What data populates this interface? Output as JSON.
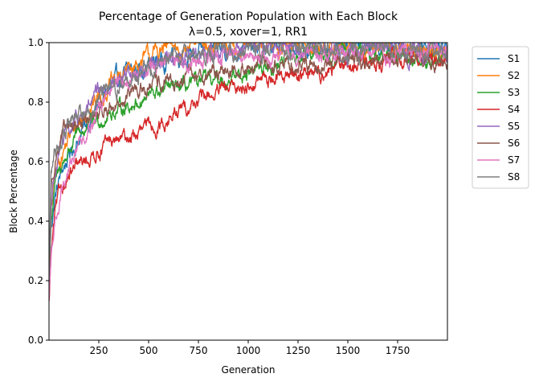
{
  "chart_data": {
    "type": "line",
    "title_line1": "Percentage of Generation Population with Each Block",
    "title_line2": "λ=0.5, xover=1, RR1",
    "xlabel": "Generation",
    "ylabel": "Block Percentage",
    "xlim": [
      0,
      2000
    ],
    "ylim": [
      0,
      1.0
    ],
    "xticks": [
      250,
      500,
      750,
      1000,
      1250,
      1500,
      1750
    ],
    "xtick_labels": [
      "250",
      "500",
      "750",
      "1000",
      "1250",
      "1500",
      "1750"
    ],
    "yticks": [
      0.0,
      0.2,
      0.4,
      0.6,
      0.8,
      1.0
    ],
    "ytick_labels": [
      "0.0",
      "0.2",
      "0.4",
      "0.6",
      "0.8",
      "1.0"
    ],
    "legend_position": "outside-right-top",
    "series": [
      {
        "name": "S1",
        "color": "#1f77b4",
        "noise": 0.035,
        "x": [
          0,
          10,
          30,
          60,
          100,
          150,
          200,
          250,
          300,
          350,
          400,
          500,
          600,
          700,
          800,
          900,
          1000,
          1200,
          1400,
          1600,
          1800,
          2000
        ],
        "values": [
          0.18,
          0.38,
          0.48,
          0.56,
          0.62,
          0.68,
          0.74,
          0.78,
          0.84,
          0.87,
          0.9,
          0.93,
          0.95,
          0.96,
          0.97,
          0.98,
          0.98,
          0.99,
          0.99,
          0.99,
          0.99,
          0.99
        ]
      },
      {
        "name": "S2",
        "color": "#ff7f0e",
        "noise": 0.035,
        "x": [
          0,
          10,
          30,
          60,
          100,
          150,
          200,
          250,
          300,
          350,
          400,
          500,
          550,
          600,
          700,
          800,
          900,
          1000,
          1200,
          1400,
          1600,
          1800,
          2000
        ],
        "values": [
          0.18,
          0.42,
          0.55,
          0.62,
          0.68,
          0.73,
          0.78,
          0.82,
          0.85,
          0.88,
          0.91,
          0.95,
          0.97,
          0.98,
          0.99,
          0.99,
          0.99,
          0.99,
          0.99,
          0.98,
          0.98,
          0.98,
          0.97
        ]
      },
      {
        "name": "S3",
        "color": "#2ca02c",
        "noise": 0.03,
        "x": [
          0,
          10,
          30,
          60,
          100,
          150,
          200,
          250,
          300,
          400,
          500,
          600,
          700,
          800,
          900,
          1000,
          1100,
          1200,
          1300,
          1400,
          1500,
          1600,
          1800,
          1900,
          2000
        ],
        "values": [
          0.16,
          0.4,
          0.52,
          0.58,
          0.64,
          0.69,
          0.72,
          0.74,
          0.76,
          0.79,
          0.82,
          0.84,
          0.85,
          0.87,
          0.88,
          0.9,
          0.92,
          0.94,
          0.96,
          0.97,
          0.97,
          0.96,
          0.95,
          0.94,
          0.95
        ]
      },
      {
        "name": "S4",
        "color": "#d62728",
        "noise": 0.03,
        "x": [
          0,
          10,
          30,
          60,
          100,
          150,
          200,
          250,
          300,
          400,
          500,
          600,
          700,
          800,
          900,
          1000,
          1100,
          1200,
          1300,
          1400,
          1500,
          1600,
          1700,
          1800,
          1900,
          2000
        ],
        "values": [
          0.12,
          0.28,
          0.42,
          0.51,
          0.55,
          0.58,
          0.61,
          0.64,
          0.66,
          0.68,
          0.71,
          0.74,
          0.79,
          0.82,
          0.84,
          0.86,
          0.88,
          0.89,
          0.9,
          0.91,
          0.92,
          0.93,
          0.94,
          0.95,
          0.95,
          0.94
        ]
      },
      {
        "name": "S5",
        "color": "#9467bd",
        "noise": 0.035,
        "x": [
          0,
          10,
          30,
          60,
          100,
          150,
          200,
          250,
          300,
          400,
          500,
          600,
          700,
          800,
          900,
          1000,
          1200,
          1400,
          1600,
          1800,
          2000
        ],
        "values": [
          0.18,
          0.45,
          0.58,
          0.65,
          0.7,
          0.74,
          0.78,
          0.82,
          0.85,
          0.89,
          0.93,
          0.95,
          0.96,
          0.97,
          0.98,
          0.98,
          0.98,
          0.98,
          0.98,
          0.98,
          0.97
        ]
      },
      {
        "name": "S6",
        "color": "#8c564b",
        "noise": 0.032,
        "x": [
          0,
          10,
          30,
          60,
          100,
          150,
          200,
          250,
          300,
          400,
          500,
          600,
          700,
          800,
          900,
          1000,
          1100,
          1200,
          1300,
          1400,
          1500,
          1600,
          1700,
          1800,
          1900,
          2000
        ],
        "values": [
          0.18,
          0.5,
          0.62,
          0.68,
          0.71,
          0.73,
          0.74,
          0.76,
          0.78,
          0.82,
          0.85,
          0.86,
          0.88,
          0.9,
          0.91,
          0.92,
          0.92,
          0.93,
          0.93,
          0.94,
          0.94,
          0.93,
          0.94,
          0.94,
          0.95,
          0.93
        ]
      },
      {
        "name": "S7",
        "color": "#e377c2",
        "noise": 0.03,
        "x": [
          0,
          10,
          30,
          60,
          100,
          150,
          200,
          250,
          300,
          350,
          400,
          500,
          600,
          700,
          800,
          900,
          1000,
          1200,
          1400,
          1600,
          1800,
          2000
        ],
        "values": [
          0.12,
          0.26,
          0.4,
          0.5,
          0.58,
          0.66,
          0.72,
          0.78,
          0.83,
          0.86,
          0.88,
          0.91,
          0.93,
          0.94,
          0.95,
          0.96,
          0.96,
          0.96,
          0.96,
          0.96,
          0.96,
          0.96
        ]
      },
      {
        "name": "S8",
        "color": "#7f7f7f",
        "noise": 0.035,
        "x": [
          0,
          10,
          30,
          60,
          100,
          150,
          200,
          250,
          300,
          400,
          500,
          600,
          700,
          800,
          900,
          1000,
          1200,
          1400,
          1600,
          1800,
          2000
        ],
        "values": [
          0.2,
          0.55,
          0.64,
          0.68,
          0.72,
          0.75,
          0.78,
          0.8,
          0.83,
          0.88,
          0.92,
          0.95,
          0.96,
          0.97,
          0.97,
          0.98,
          0.98,
          0.98,
          0.98,
          0.98,
          0.98
        ]
      }
    ]
  }
}
